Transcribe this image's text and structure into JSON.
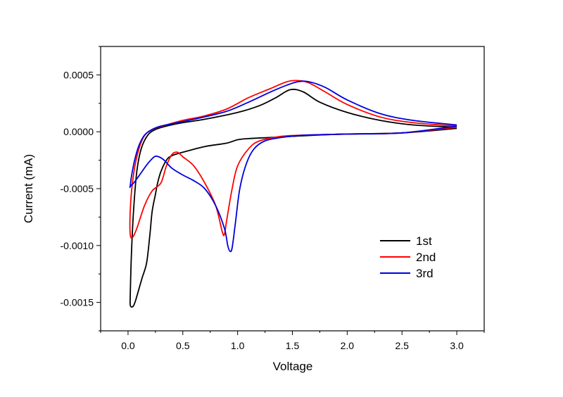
{
  "chart_data": {
    "type": "line",
    "title": "",
    "xlabel": "Voltage",
    "ylabel": "Current (mA)",
    "xlim": [
      -0.25,
      3.25
    ],
    "ylim": [
      -0.00175,
      0.00075
    ],
    "xticks": [
      0.0,
      0.5,
      1.0,
      1.5,
      2.0,
      2.5,
      3.0
    ],
    "xtick_labels": [
      "0.0",
      "0.5",
      "1.0",
      "1.5",
      "2.0",
      "2.5",
      "3.0"
    ],
    "yticks": [
      -0.0015,
      -0.001,
      -0.0005,
      0.0,
      0.0005
    ],
    "ytick_labels": [
      "-0.0015",
      "-0.0010",
      "-0.0005",
      "0.0000",
      "0.0005"
    ],
    "grid": false,
    "legend_position": "lower-right",
    "series": [
      {
        "name": "1st",
        "color": "#000000",
        "x": [
          3.0,
          2.5,
          2.0,
          1.7,
          1.5,
          1.3,
          1.1,
          1.0,
          0.9,
          0.7,
          0.5,
          0.4,
          0.35,
          0.3,
          0.27,
          0.25,
          0.22,
          0.2,
          0.17,
          0.13,
          0.1,
          0.07,
          0.05,
          0.03,
          0.02,
          0.02,
          0.03,
          0.05,
          0.08,
          0.12,
          0.18,
          0.25,
          0.35,
          0.5,
          0.7,
          1.0,
          1.2,
          1.35,
          1.48,
          1.6,
          1.75,
          2.0,
          2.3,
          2.6,
          3.0
        ],
        "y": [
          3e-05,
          -1e-05,
          -2e-05,
          -3e-05,
          -4e-05,
          -5e-05,
          -6e-05,
          -7e-05,
          -0.0001,
          -0.00013,
          -0.00018,
          -0.00021,
          -0.00025,
          -0.00035,
          -0.00045,
          -0.00055,
          -0.0007,
          -0.0009,
          -0.00115,
          -0.00128,
          -0.00138,
          -0.00148,
          -0.00153,
          -0.00154,
          -0.00152,
          -0.00145,
          -0.0011,
          -0.0007,
          -0.00035,
          -0.00015,
          -3e-05,
          2e-05,
          5e-05,
          8e-05,
          0.00011,
          0.00017,
          0.00023,
          0.0003,
          0.00037,
          0.00035,
          0.00026,
          0.00017,
          0.0001,
          6e-05,
          4e-05
        ]
      },
      {
        "name": "2nd",
        "color": "#ff0000",
        "x": [
          3.0,
          2.5,
          2.0,
          1.6,
          1.4,
          1.2,
          1.1,
          1.0,
          0.95,
          0.9,
          0.88,
          0.86,
          0.8,
          0.7,
          0.6,
          0.5,
          0.45,
          0.4,
          0.35,
          0.3,
          0.22,
          0.15,
          0.08,
          0.04,
          0.02,
          0.02,
          0.04,
          0.08,
          0.14,
          0.22,
          0.35,
          0.5,
          0.7,
          0.9,
          1.1,
          1.3,
          1.45,
          1.55,
          1.65,
          1.8,
          2.0,
          2.3,
          2.6,
          3.0
        ],
        "y": [
          4e-05,
          -1e-05,
          -2e-05,
          -3e-05,
          -4e-05,
          -8e-05,
          -0.00015,
          -0.0003,
          -0.0005,
          -0.00078,
          -0.0009,
          -0.00088,
          -0.00065,
          -0.00045,
          -0.0003,
          -0.00022,
          -0.00018,
          -0.0002,
          -0.0003,
          -0.00045,
          -0.00052,
          -0.00065,
          -0.00085,
          -0.00093,
          -0.0009,
          -0.0007,
          -0.00045,
          -0.00022,
          -5e-05,
          2e-05,
          6e-05,
          0.0001,
          0.00014,
          0.0002,
          0.0003,
          0.00038,
          0.00044,
          0.00045,
          0.00043,
          0.00035,
          0.00024,
          0.00013,
          8e-05,
          5e-05
        ]
      },
      {
        "name": "3rd",
        "color": "#0000dd",
        "x": [
          3.0,
          2.5,
          2.0,
          1.6,
          1.4,
          1.25,
          1.15,
          1.08,
          1.02,
          0.98,
          0.95,
          0.93,
          0.91,
          0.88,
          0.8,
          0.7,
          0.6,
          0.5,
          0.4,
          0.33,
          0.28,
          0.24,
          0.18,
          0.12,
          0.06,
          0.02,
          0.02,
          0.03,
          0.06,
          0.1,
          0.15,
          0.22,
          0.3,
          0.45,
          0.65,
          0.9,
          1.1,
          1.3,
          1.45,
          1.55,
          1.65,
          1.8,
          2.0,
          2.3,
          2.6,
          3.0
        ],
        "y": [
          5e-05,
          -1e-05,
          -2e-05,
          -3e-05,
          -5e-05,
          -8e-05,
          -0.00015,
          -0.00028,
          -0.0005,
          -0.0008,
          -0.00102,
          -0.00105,
          -0.001,
          -0.00085,
          -0.00065,
          -0.0005,
          -0.00043,
          -0.00038,
          -0.00032,
          -0.00025,
          -0.00022,
          -0.00022,
          -0.00028,
          -0.00036,
          -0.00044,
          -0.00048,
          -0.00048,
          -0.0004,
          -0.00025,
          -0.00012,
          -3e-05,
          2e-05,
          5e-05,
          8e-05,
          0.00012,
          0.00018,
          0.00026,
          0.00035,
          0.00041,
          0.00044,
          0.00044,
          0.00039,
          0.00028,
          0.00016,
          0.0001,
          6e-05
        ]
      }
    ]
  }
}
